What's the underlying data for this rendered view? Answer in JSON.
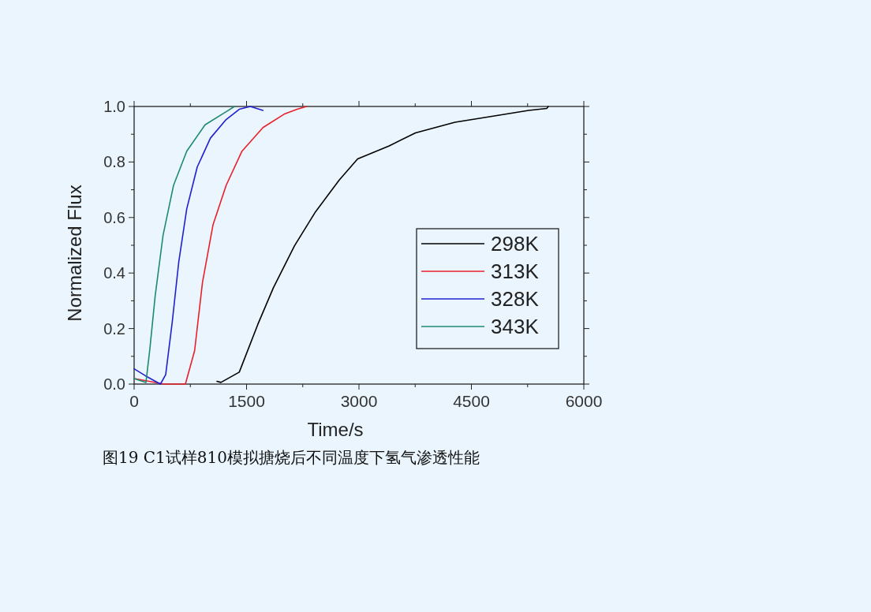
{
  "chart_data": {
    "type": "line",
    "xlabel": "Time/s",
    "ylabel": "Normalized Flux",
    "xlim": [
      0,
      6000
    ],
    "ylim": [
      0,
      1.0
    ],
    "xticks": [
      0,
      {
        "value": 750,
        "label": null
      },
      1500,
      {
        "value": 2250,
        "label": null
      },
      3000,
      {
        "value": 3750,
        "label": null
      },
      4500,
      {
        "value": 5250,
        "label": null
      },
      6000
    ],
    "yticks": [
      {
        "value": 0,
        "label": "0.0"
      },
      {
        "value": 0.1,
        "label": null
      },
      0.2,
      {
        "value": 0.3,
        "label": null
      },
      0.4,
      {
        "value": 0.5,
        "label": null
      },
      0.6,
      {
        "value": 0.7,
        "label": null
      },
      0.8,
      {
        "value": 0.9,
        "label": null
      },
      {
        "value": 1.0,
        "label": "1.0"
      }
    ],
    "legend": "bottom right",
    "grid": false,
    "series": [
      {
        "name": "298K",
        "color": "#000000",
        "x": [
          1105,
          1158,
          1403,
          1649,
          1858,
          2140,
          2421,
          2737,
          2982,
          3403,
          3754,
          4281,
          4807,
          5263,
          5505,
          5526
        ],
        "values": [
          0.01,
          0.006,
          0.043,
          0.214,
          0.347,
          0.498,
          0.621,
          0.735,
          0.811,
          0.858,
          0.905,
          0.943,
          0.966,
          0.986,
          0.993,
          1.0
        ]
      },
      {
        "name": "313K",
        "color": "#e8202a",
        "x": [
          0,
          200,
          400,
          684,
          807,
          912,
          1053,
          1228,
          1439,
          1719,
          2000,
          2175,
          2300
        ],
        "values": [
          0.02,
          0.01,
          0.0,
          0.0,
          0.12,
          0.366,
          0.574,
          0.716,
          0.839,
          0.924,
          0.972,
          0.99,
          1.0
        ]
      },
      {
        "name": "328K",
        "color": "#2020d0",
        "x": [
          0,
          150,
          351,
          421,
          509,
          596,
          702,
          842,
          1018,
          1228,
          1403,
          1550,
          1719
        ],
        "values": [
          0.055,
          0.03,
          0.0,
          0.034,
          0.224,
          0.441,
          0.631,
          0.782,
          0.886,
          0.953,
          0.99,
          1.0,
          0.986
        ]
      },
      {
        "name": "343K",
        "color": "#1e8a6e",
        "x": [
          0,
          158,
          211,
          281,
          386,
          526,
          702,
          947,
          1228,
          1340
        ],
        "values": [
          0.02,
          0.006,
          0.129,
          0.318,
          0.536,
          0.716,
          0.839,
          0.934,
          0.981,
          1.0
        ]
      }
    ],
    "annotations": [
      "图19 C1试样810模拟搪烧后不同温度下氢气渗透性能"
    ]
  }
}
